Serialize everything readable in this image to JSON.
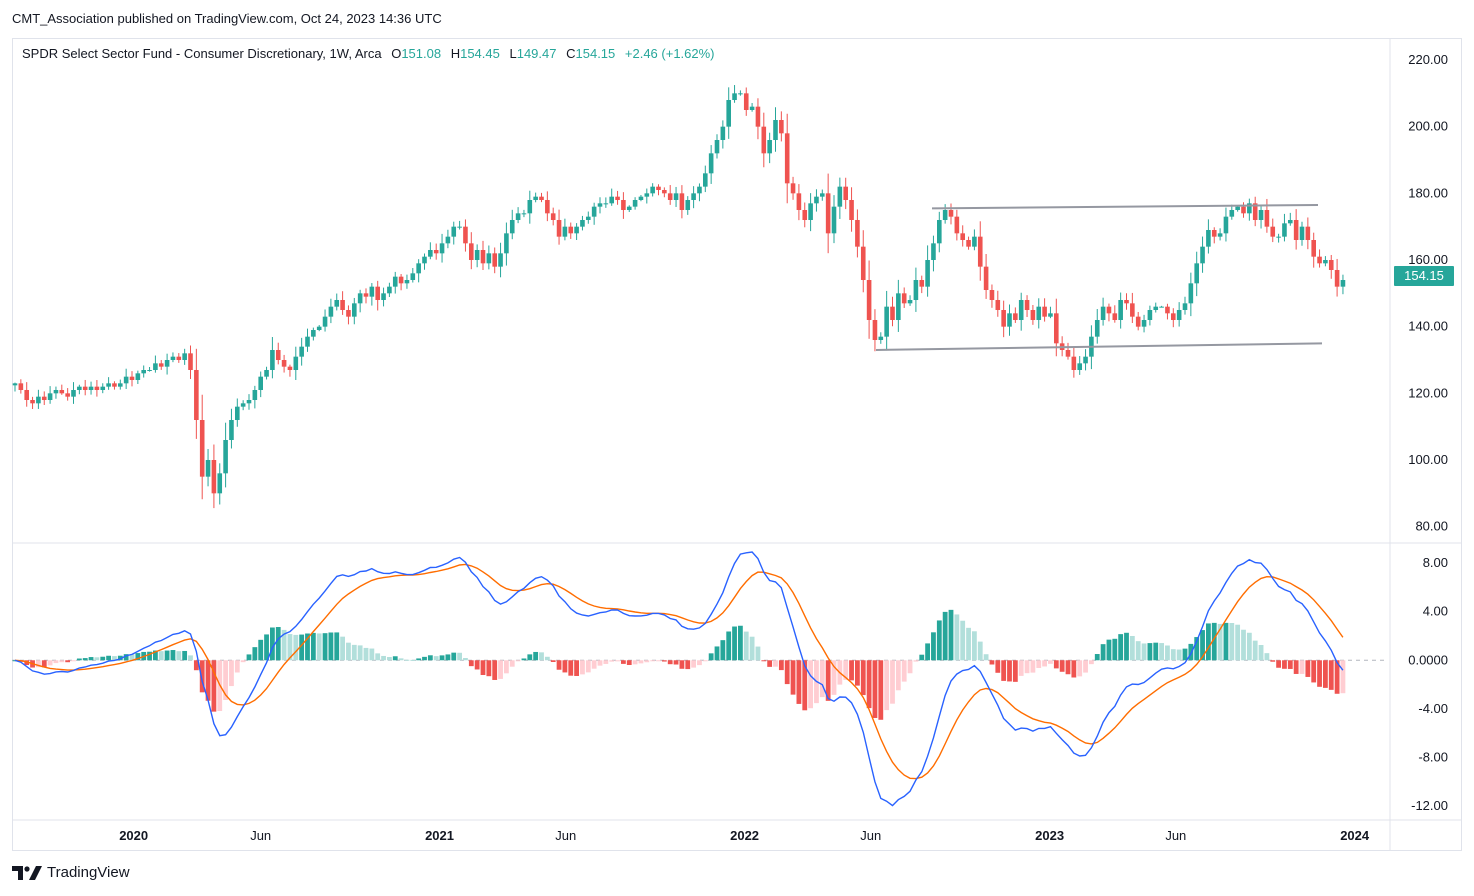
{
  "header": {
    "publisher": "CMT_Association published on TradingView.com, Oct 24, 2023 14:36 UTC"
  },
  "legend": {
    "symbol": "SPDR Select Sector Fund - Consumer Discretionary, 1W, Arca",
    "open_label": "O",
    "open": "151.08",
    "high_label": "H",
    "high": "154.45",
    "low_label": "L",
    "low": "149.47",
    "close_label": "C",
    "close": "154.15",
    "change": "+2.46 (+1.62%)"
  },
  "last_price_tag": "154.15",
  "brand": "TradingView",
  "colors": {
    "up": "#26a69a",
    "down": "#ef5350",
    "up_light": "#b2dfdb",
    "down_light": "#ffcdd2",
    "macd": "#2962ff",
    "signal": "#ff6d00",
    "trendline": "#9598a1"
  },
  "chart_data": {
    "type": "candlestick",
    "price_axis": {
      "ticks": [
        "80.00",
        "100.00",
        "120.00",
        "140.00",
        "160.00",
        "180.00",
        "200.00",
        "220.00"
      ],
      "range": [
        76,
        226
      ]
    },
    "macd_axis": {
      "ticks": [
        "8.00",
        "4.00",
        "0.0000",
        "-4.00",
        "-8.00",
        "-12.00"
      ],
      "range": [
        -13,
        9.5
      ]
    },
    "time_axis": [
      {
        "label": "2020",
        "bold": true,
        "date": "2020-01-01"
      },
      {
        "label": "Jun",
        "bold": false,
        "date": "2020-06-01"
      },
      {
        "label": "2021",
        "bold": true,
        "date": "2021-01-01"
      },
      {
        "label": "Jun",
        "bold": false,
        "date": "2021-06-01"
      },
      {
        "label": "2022",
        "bold": true,
        "date": "2022-01-01"
      },
      {
        "label": "Jun",
        "bold": false,
        "date": "2022-06-01"
      },
      {
        "label": "2023",
        "bold": true,
        "date": "2023-01-01"
      },
      {
        "label": "Jun",
        "bold": false,
        "date": "2023-06-01"
      },
      {
        "label": "2024",
        "bold": true,
        "date": "2024-01-01"
      }
    ],
    "start_date": "2019-08-12",
    "closes": [
      123,
      121,
      118,
      117,
      119,
      118,
      120,
      121,
      120,
      119,
      121,
      122,
      121,
      122,
      121,
      122,
      123,
      122,
      123,
      125,
      124,
      126,
      127,
      127,
      129,
      128,
      130,
      131,
      130,
      132,
      127,
      112,
      95,
      100,
      90,
      96,
      106,
      112,
      116,
      117,
      118,
      121,
      125,
      127,
      133,
      130,
      128,
      127,
      131,
      134,
      137,
      139,
      140,
      143,
      146,
      148,
      145,
      143,
      147,
      150,
      149,
      152,
      148,
      150,
      152,
      155,
      153,
      154,
      156,
      159,
      161,
      163,
      162,
      165,
      167,
      170,
      170,
      165,
      160,
      163,
      159,
      162,
      158,
      162,
      168,
      172,
      174,
      174,
      178,
      179,
      178,
      174,
      172,
      167,
      170,
      168,
      170,
      172,
      173,
      176,
      177,
      177,
      179,
      178,
      175,
      176,
      178,
      179,
      180,
      182,
      181,
      180,
      178,
      180,
      175,
      178,
      180,
      182,
      186,
      192,
      196,
      200,
      208,
      210,
      210,
      205,
      206,
      200,
      192,
      196,
      202,
      198,
      183,
      180,
      175,
      172,
      177,
      179,
      180,
      168,
      176,
      182,
      178,
      172,
      164,
      154,
      142,
      136,
      137,
      146,
      142,
      150,
      147,
      148,
      154,
      152,
      160,
      165,
      172,
      175,
      173,
      168,
      166,
      164,
      167,
      158,
      151,
      148,
      145,
      140,
      144,
      142,
      148,
      145,
      142,
      146,
      143,
      144,
      135,
      133,
      131,
      127,
      129,
      131,
      137,
      142,
      146,
      144,
      142,
      148,
      147,
      143,
      140,
      142,
      145,
      146,
      146,
      144,
      142,
      145,
      147,
      153,
      159,
      164,
      169,
      167,
      168,
      173,
      175,
      176,
      174,
      177,
      172,
      175,
      170,
      167,
      167,
      171,
      172,
      166,
      170,
      166,
      161,
      159,
      160,
      157,
      152,
      154
    ]
  }
}
